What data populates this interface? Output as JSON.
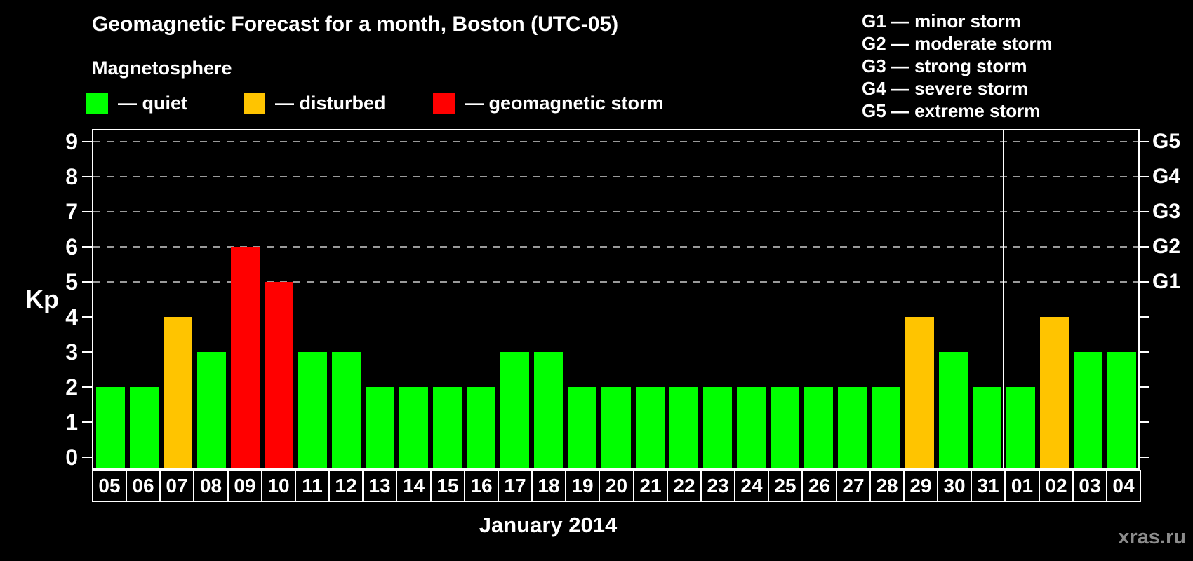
{
  "header": {
    "title": "Geomagnetic Forecast for a month, Boston (UTC-05)",
    "legend_title": "Magnetosphere"
  },
  "magnetosphere_legend": {
    "items": [
      {
        "name": "quiet",
        "label": "— quiet",
        "color": "#00ff00",
        "x": 123
      },
      {
        "name": "disturbed",
        "label": "— disturbed",
        "color": "#ffc400",
        "x": 347
      },
      {
        "name": "storm",
        "label": "— geomagnetic storm",
        "color": "#ff0000",
        "x": 617
      }
    ]
  },
  "storm_scale_legend": {
    "items": [
      "G1 — minor storm",
      "G2 — moderate storm",
      "G3 — strong storm",
      "G4 — severe storm",
      "G5 — extreme storm"
    ]
  },
  "chart_data": {
    "type": "bar",
    "title": "Geomagnetic Forecast for a month, Boston (UTC-05)",
    "ylabel": "Kp",
    "xlabel": "January 2014",
    "ylim": [
      0,
      9
    ],
    "yticks": [
      0,
      1,
      2,
      3,
      4,
      5,
      6,
      7,
      8,
      9
    ],
    "gridlines_at_kp": [
      5,
      6,
      7,
      8,
      9
    ],
    "grid": "dashed horizontal lines at storm levels only",
    "legend_position": "top",
    "right_axis": [
      {
        "kp": 5,
        "label": "G1"
      },
      {
        "kp": 6,
        "label": "G2"
      },
      {
        "kp": 7,
        "label": "G3"
      },
      {
        "kp": 8,
        "label": "G4"
      },
      {
        "kp": 9,
        "label": "G5"
      }
    ],
    "categories": [
      "05",
      "06",
      "07",
      "08",
      "09",
      "10",
      "11",
      "12",
      "13",
      "14",
      "15",
      "16",
      "17",
      "18",
      "19",
      "20",
      "21",
      "22",
      "23",
      "24",
      "25",
      "26",
      "27",
      "28",
      "29",
      "30",
      "31",
      "01",
      "02",
      "03",
      "04"
    ],
    "values": [
      2,
      2,
      4,
      3,
      6,
      5,
      3,
      3,
      2,
      2,
      2,
      2,
      3,
      3,
      2,
      2,
      2,
      2,
      2,
      2,
      2,
      2,
      2,
      2,
      4,
      3,
      2,
      2,
      4,
      3,
      3
    ],
    "statuses": [
      "quiet",
      "quiet",
      "disturbed",
      "quiet",
      "storm",
      "storm",
      "quiet",
      "quiet",
      "quiet",
      "quiet",
      "quiet",
      "quiet",
      "quiet",
      "quiet",
      "quiet",
      "quiet",
      "quiet",
      "quiet",
      "quiet",
      "quiet",
      "quiet",
      "quiet",
      "quiet",
      "quiet",
      "disturbed",
      "quiet",
      "quiet",
      "quiet",
      "disturbed",
      "quiet",
      "quiet"
    ],
    "month_boundary_after_index": 26,
    "color_map": {
      "quiet": "#00ff00",
      "disturbed": "#ffc400",
      "storm": "#ff0000"
    }
  },
  "footer": {
    "xaxis_label": "January 2014",
    "watermark": "xras.ru"
  }
}
